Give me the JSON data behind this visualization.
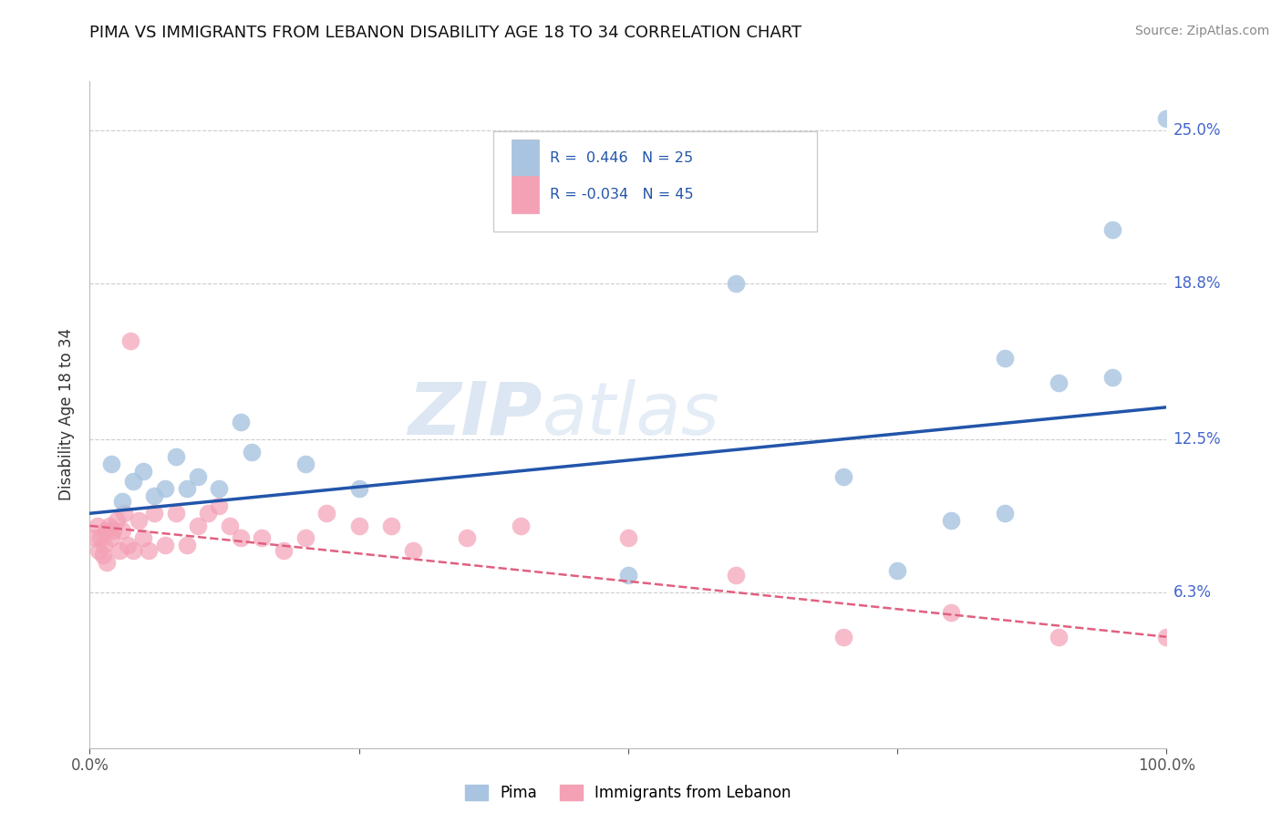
{
  "title": "PIMA VS IMMIGRANTS FROM LEBANON DISABILITY AGE 18 TO 34 CORRELATION CHART",
  "source": "Source: ZipAtlas.com",
  "ylabel": "Disability Age 18 to 34",
  "xlim": [
    0,
    100
  ],
  "ylim": [
    0,
    27
  ],
  "ytick_positions": [
    6.3,
    12.5,
    18.8,
    25.0
  ],
  "ytick_labels": [
    "6.3%",
    "12.5%",
    "18.8%",
    "25.0%"
  ],
  "xtick_positions": [
    0,
    25,
    50,
    75,
    100
  ],
  "xtick_labels": [
    "0.0%",
    "",
    "",
    "",
    "100.0%"
  ],
  "pima_R": 0.446,
  "pima_N": 25,
  "lebanon_R": -0.034,
  "lebanon_N": 45,
  "pima_color": "#a8c4e0",
  "lebanon_color": "#f4a0b5",
  "pima_line_color": "#2255aa",
  "lebanon_line_color": "#e06080",
  "watermark_zip": "ZIP",
  "watermark_atlas": "atlas",
  "pima_x": [
    2,
    3,
    4,
    5,
    6,
    7,
    8,
    9,
    10,
    12,
    14,
    15,
    20,
    25,
    50,
    60,
    70,
    80,
    85,
    90,
    95,
    100,
    75,
    85,
    95
  ],
  "pima_y": [
    11.5,
    10.0,
    10.8,
    11.2,
    10.2,
    10.5,
    11.8,
    10.5,
    11.0,
    10.5,
    13.2,
    12.0,
    11.5,
    10.5,
    7.0,
    18.8,
    11.0,
    9.2,
    15.8,
    14.8,
    21.0,
    25.5,
    7.2,
    9.5,
    15.0
  ],
  "lebanon_x": [
    0.5,
    0.7,
    0.8,
    1.0,
    1.2,
    1.3,
    1.5,
    1.6,
    1.8,
    2.0,
    2.2,
    2.5,
    2.8,
    3.0,
    3.2,
    3.5,
    3.8,
    4.0,
    4.5,
    5.0,
    5.5,
    6.0,
    7.0,
    8.0,
    9.0,
    10.0,
    11.0,
    12.0,
    13.0,
    14.0,
    16.0,
    18.0,
    20.0,
    22.0,
    25.0,
    28.0,
    30.0,
    35.0,
    40.0,
    50.0,
    60.0,
    70.0,
    80.0,
    90.0,
    100.0
  ],
  "lebanon_y": [
    8.5,
    9.0,
    8.0,
    8.5,
    7.8,
    8.2,
    8.8,
    7.5,
    9.0,
    8.5,
    8.8,
    9.2,
    8.0,
    8.8,
    9.5,
    8.2,
    16.5,
    8.0,
    9.2,
    8.5,
    8.0,
    9.5,
    8.2,
    9.5,
    8.2,
    9.0,
    9.5,
    9.8,
    9.0,
    8.5,
    8.5,
    8.0,
    8.5,
    9.5,
    9.0,
    9.0,
    8.0,
    8.5,
    9.0,
    8.5,
    7.0,
    4.5,
    5.5,
    4.5,
    4.5
  ],
  "pima_line_x0": 0,
  "pima_line_x1": 100,
  "pima_line_y0": 9.5,
  "pima_line_y1": 13.8,
  "lebanon_line_x0": 0,
  "lebanon_line_x1": 100,
  "lebanon_line_y0": 9.0,
  "lebanon_line_y1": 4.5
}
